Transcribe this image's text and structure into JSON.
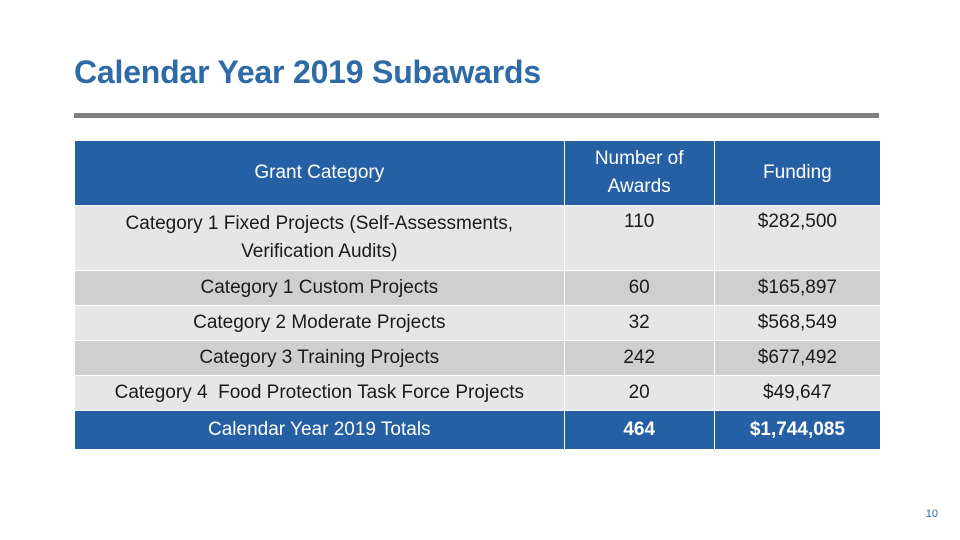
{
  "title": "Calendar Year 2019 Subawards",
  "table": {
    "headers": {
      "category": "Grant Category",
      "number": "Number of Awards",
      "funding": "Funding"
    },
    "rows": [
      {
        "category": "Category 1 Fixed Projects (Self-Assessments, Verification Audits)",
        "number": "110",
        "funding": "$282,500"
      },
      {
        "category": "Category 1 Custom Projects",
        "number": "60",
        "funding": "$165,897"
      },
      {
        "category": "Category 2 Moderate Projects",
        "number": "32",
        "funding": "$568,549"
      },
      {
        "category": "Category 3 Training Projects",
        "number": "242",
        "funding": "$677,492"
      },
      {
        "category": "Category 4  Food Protection Task Force Projects",
        "number": "20",
        "funding": "$49,647"
      }
    ],
    "totals": {
      "label": "Calendar Year 2019 Totals",
      "number": "464",
      "funding": "$1,744,085"
    }
  },
  "page_number": "10",
  "colors": {
    "title": "#2e6aa6",
    "header_bg": "#2660a4",
    "row_light": "#e6e6e6",
    "row_dark": "#cfcfcf",
    "rule": "#7f7f7f"
  }
}
